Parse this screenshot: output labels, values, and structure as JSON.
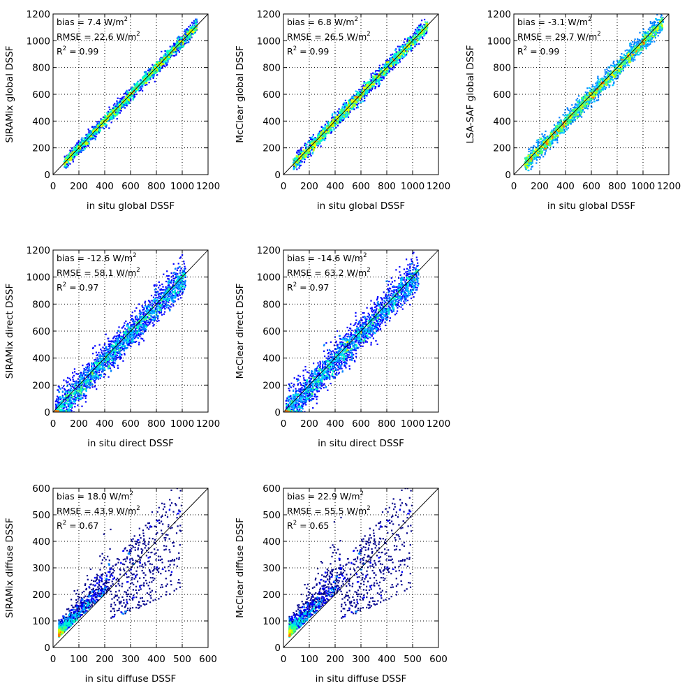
{
  "chart_data": [
    {
      "type": "heatmap",
      "xlabel": "in situ global DSSF",
      "ylabel": "SIRAMix global DSSF",
      "xlim": [
        0,
        1200
      ],
      "ylim": [
        0,
        1200
      ],
      "xticks": [
        "0",
        "200",
        "400",
        "600",
        "800",
        "1000",
        "1200"
      ],
      "yticks": [
        "0",
        "200",
        "400",
        "600",
        "800",
        "1000",
        "1200"
      ],
      "grid": true,
      "stats": {
        "bias": "bias = 7.4 W/m",
        "rmse": "RMSE = 22.6 W/m",
        "r2_prefix": "R",
        "r2_value": " = 0.99",
        "exp": "2"
      },
      "points_range": [
        80,
        1110
      ],
      "spread": 22,
      "offset": 7.4
    },
    {
      "type": "heatmap",
      "xlabel": "in situ global DSSF",
      "ylabel": "McClear global DSSF",
      "xlim": [
        0,
        1200
      ],
      "ylim": [
        0,
        1200
      ],
      "xticks": [
        "0",
        "200",
        "400",
        "600",
        "800",
        "1000",
        "1200"
      ],
      "yticks": [
        "0",
        "200",
        "400",
        "600",
        "800",
        "1000",
        "1200"
      ],
      "grid": true,
      "stats": {
        "bias": "bias = 6.8 W/m",
        "rmse": "RMSE = 26.5 W/m",
        "r2_prefix": "R",
        "r2_value": " = 0.99",
        "exp": "2"
      },
      "points_range": [
        70,
        1110
      ],
      "spread": 26,
      "offset": 6.8
    },
    {
      "type": "heatmap",
      "xlabel": "in situ global DSSF",
      "ylabel": "LSA-SAF global DSSF",
      "xlim": [
        0,
        1200
      ],
      "ylim": [
        0,
        1200
      ],
      "xticks": [
        "0",
        "200",
        "400",
        "600",
        "800",
        "1000",
        "1200"
      ],
      "yticks": [
        "0",
        "200",
        "400",
        "600",
        "800",
        "1000",
        "1200"
      ],
      "grid": true,
      "stats": {
        "bias": "bias = -3.1 W/m",
        "rmse": "RMSE = 29.7 W/m",
        "r2_prefix": "R",
        "r2_value": " = 0.99",
        "exp": "2"
      },
      "points_range": [
        80,
        1150
      ],
      "spread": 30,
      "offset": -3.1
    },
    {
      "type": "heatmap",
      "xlabel": "in situ direct DSSF",
      "ylabel": "SIRAMix direct DSSF",
      "xlim": [
        0,
        1200
      ],
      "ylim": [
        0,
        1200
      ],
      "xticks": [
        "0",
        "200",
        "400",
        "600",
        "800",
        "1000",
        "1200"
      ],
      "yticks": [
        "0",
        "200",
        "400",
        "600",
        "800",
        "1000",
        "1200"
      ],
      "grid": true,
      "stats": {
        "bias": "bias = -12.6 W/m",
        "rmse": "RMSE = 58.1 W/m",
        "r2_prefix": "R",
        "r2_value": " = 0.97",
        "exp": "2"
      },
      "points_range": [
        10,
        1020
      ],
      "spread": 55,
      "offset": -12.6
    },
    {
      "type": "heatmap",
      "xlabel": "in situ direct DSSF",
      "ylabel": "McClear direct DSSF",
      "xlim": [
        0,
        1200
      ],
      "ylim": [
        0,
        1200
      ],
      "xticks": [
        "0",
        "200",
        "400",
        "600",
        "800",
        "1000",
        "1200"
      ],
      "yticks": [
        "0",
        "200",
        "400",
        "600",
        "800",
        "1000",
        "1200"
      ],
      "grid": true,
      "stats": {
        "bias": "bias = -14.6 W/m",
        "rmse": "RMSE = 63.2 W/m",
        "r2_prefix": "R",
        "r2_value": " = 0.97",
        "exp": "2"
      },
      "points_range": [
        10,
        1040
      ],
      "spread": 60,
      "offset": -14.6
    },
    {
      "type": "heatmap",
      "xlabel": "in situ diffuse DSSF",
      "ylabel": "SIRAMix diffuse DSSF",
      "xlim": [
        0,
        600
      ],
      "ylim": [
        0,
        600
      ],
      "xticks": [
        "0",
        "100",
        "200",
        "300",
        "400",
        "500",
        "600"
      ],
      "yticks": [
        "0",
        "100",
        "200",
        "300",
        "400",
        "500",
        "600"
      ],
      "grid": true,
      "stats": {
        "bias": "bias = 18.0 W/m",
        "rmse": "RMSE = 43.9 W/m",
        "r2_prefix": "R",
        "r2_value": " = 0.67",
        "exp": "2"
      },
      "points_range": [
        20,
        520
      ],
      "spread": 40,
      "offset": 18.0
    },
    {
      "type": "heatmap",
      "xlabel": "in situ diffuse DSSF",
      "ylabel": "McClear diffuse DSSF",
      "xlim": [
        0,
        600
      ],
      "ylim": [
        0,
        600
      ],
      "xticks": [
        "0",
        "100",
        "200",
        "300",
        "400",
        "500",
        "600"
      ],
      "yticks": [
        "0",
        "100",
        "200",
        "300",
        "400",
        "500",
        "600"
      ],
      "grid": true,
      "stats": {
        "bias": "bias = 22.9 W/m",
        "rmse": "RMSE = 55.5 W/m",
        "r2_prefix": "R",
        "r2_value": " = 0.65",
        "exp": "2"
      },
      "points_range": [
        20,
        520
      ],
      "spread": 48,
      "offset": 22.9
    }
  ],
  "colors": {
    "axis": "#000000",
    "grid": "#000000",
    "identity_line": "#000000",
    "density_scale": [
      "#000000",
      "#00008b",
      "#0000ff",
      "#0080ff",
      "#00c8ff",
      "#00ffc8",
      "#40ff80",
      "#c8ff00",
      "#ffff00",
      "#ff8000"
    ]
  }
}
